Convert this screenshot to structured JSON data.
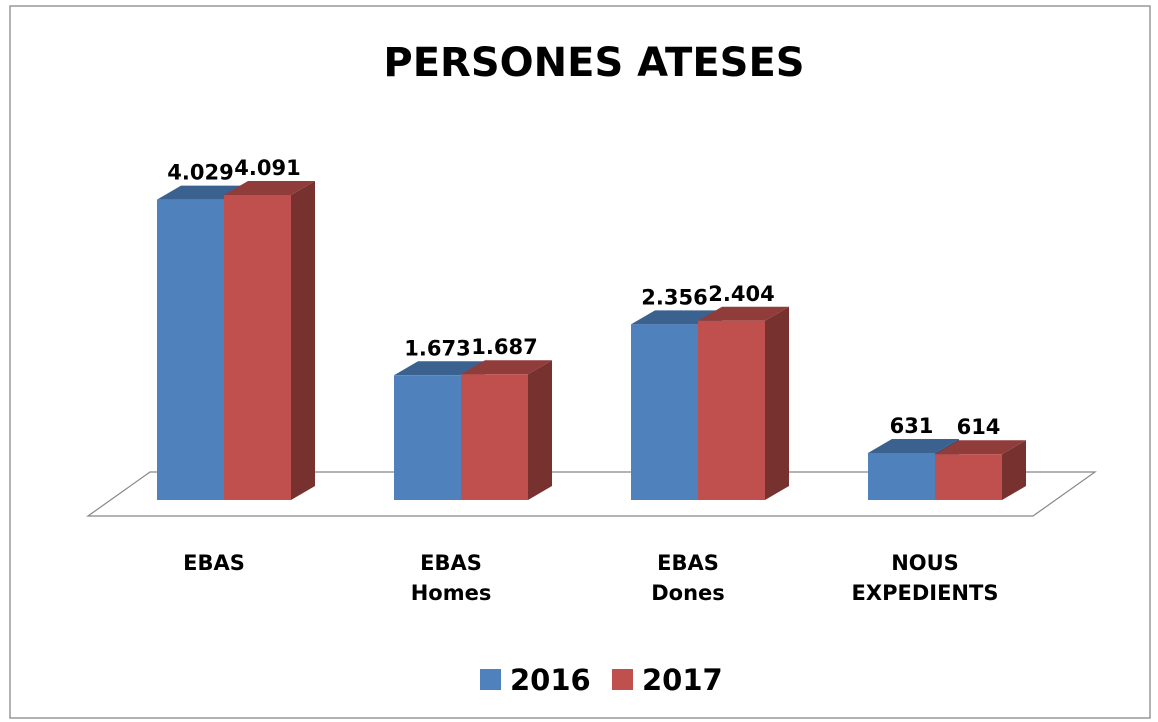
{
  "chart_data": {
    "type": "bar3d",
    "title": "PERSONES ATESES",
    "categories": [
      "EBAS",
      "EBAS Homes",
      "EBAS Dones",
      "NOUS EXPEDIENTS"
    ],
    "series": [
      {
        "name": "2016",
        "color": "#4f81bd",
        "values": [
          4029,
          1673,
          2356,
          631
        ],
        "value_labels": [
          "4.029",
          "1.673",
          "2.356",
          "631"
        ]
      },
      {
        "name": "2017",
        "color": "#c0504d",
        "values": [
          4091,
          1687,
          2404,
          614
        ],
        "value_labels": [
          "4.091",
          "1.687",
          "2.404",
          "614"
        ]
      }
    ],
    "legend": "bottom"
  }
}
